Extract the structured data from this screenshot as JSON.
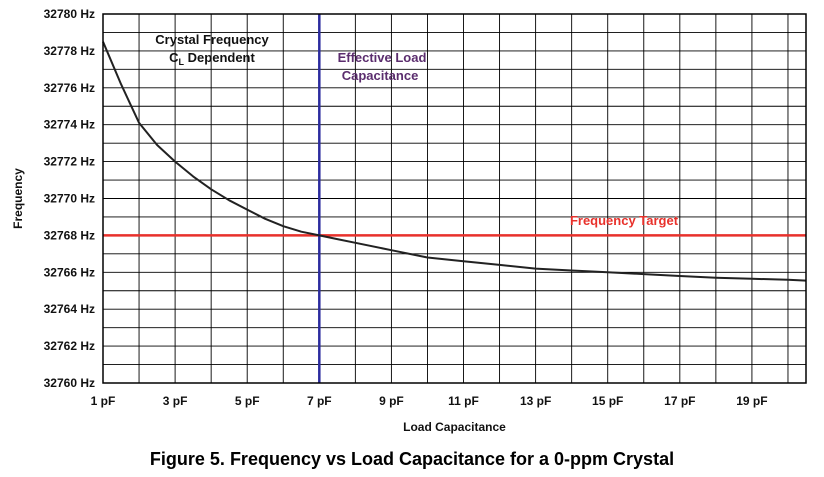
{
  "caption": "Figure 5. Frequency vs Load Capacitance for a 0-ppm Crystal",
  "chart_data": {
    "type": "line",
    "xlabel": "Load Capacitance",
    "ylabel": "Frequency",
    "xlim": [
      1,
      20.5
    ],
    "ylim": [
      32760,
      32780
    ],
    "x_ticks": [
      1,
      3,
      5,
      7,
      9,
      11,
      13,
      15,
      17,
      19
    ],
    "x_tick_labels": [
      "1 pF",
      "3 pF",
      "5 pF",
      "7 pF",
      "9 pF",
      "11 pF",
      "13 pF",
      "15 pF",
      "17 pF",
      "19 pF"
    ],
    "y_ticks": [
      32760,
      32762,
      32764,
      32766,
      32768,
      32770,
      32772,
      32774,
      32776,
      32778,
      32780
    ],
    "y_tick_labels": [
      "32760 Hz",
      "32762 Hz",
      "32764 Hz",
      "32766 Hz",
      "32768 Hz",
      "32770 Hz",
      "32772 Hz",
      "32774 Hz",
      "32776 Hz",
      "32778 Hz",
      "32780 Hz"
    ],
    "grid": true,
    "series": [
      {
        "color": "#222222",
        "x": [
          1,
          1.5,
          2,
          2.5,
          3,
          3.5,
          4,
          4.5,
          5,
          5.5,
          6,
          6.5,
          7,
          7.5,
          8,
          9,
          10,
          11,
          12,
          13,
          14,
          15,
          16,
          17,
          18,
          19,
          20,
          20.5
        ],
        "y": [
          32778.5,
          32776.2,
          32774.1,
          32772.9,
          32772.0,
          32771.2,
          32770.5,
          32769.9,
          32769.4,
          32768.9,
          32768.5,
          32768.2,
          32768.0,
          32767.8,
          32767.6,
          32767.2,
          32766.8,
          32766.6,
          32766.4,
          32766.2,
          32766.1,
          32766.0,
          32765.9,
          32765.8,
          32765.7,
          32765.65,
          32765.6,
          32765.55
        ]
      }
    ],
    "reference_lines": [
      {
        "orientation": "horizontal",
        "value": 32768,
        "label": "Frequency Target",
        "color": "#e8312b"
      },
      {
        "orientation": "vertical",
        "value": 7,
        "label_lines": [
          "Effective Load",
          "Capacitance"
        ],
        "color": "#2b2b9e"
      }
    ],
    "annotation": {
      "text": "Crystal Frequency",
      "text2_main": "C",
      "text2_sub": "L",
      "text2_rest": " Dependent",
      "color": "#111111"
    },
    "label_color_vertical": "#5b2d6e"
  }
}
